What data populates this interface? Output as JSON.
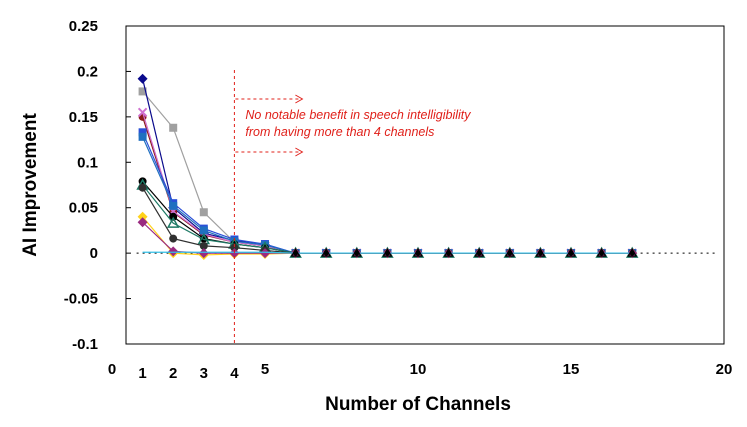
{
  "chart_data": {
    "type": "scatter",
    "xlabel": "Number of Channels",
    "ylabel": "AI Improvement",
    "xlim": [
      0,
      20
    ],
    "ylim": [
      -0.1,
      0.25
    ],
    "x_ticks": [
      "0",
      "5",
      "10",
      "15",
      "20"
    ],
    "x_ticks_values": [
      0,
      5,
      10,
      15,
      20
    ],
    "bold_x_ticks": [
      "1",
      "2",
      "3",
      "4"
    ],
    "bold_x_ticks_values": [
      1,
      2,
      3,
      4
    ],
    "y_ticks": [
      "0.25",
      "0.2",
      "0.15",
      "0.1",
      "0.05",
      "0",
      "-0.05",
      "-0.1"
    ],
    "y_ticks_values": [
      0.25,
      0.2,
      0.15,
      0.1,
      0.05,
      0,
      -0.05,
      -0.1
    ],
    "grid": false,
    "legend": "none",
    "zero_line": "dotted",
    "x": [
      1,
      2,
      3,
      4,
      5,
      6,
      7,
      8,
      9,
      10,
      11,
      12,
      13,
      14,
      15,
      16,
      17
    ],
    "series": [
      {
        "color": "#a0a0a0",
        "marker": "square",
        "values": [
          0.178,
          0.138,
          0.045,
          0.012,
          0.008,
          0,
          0,
          0,
          0,
          0,
          0,
          0,
          0,
          0,
          0,
          0,
          0
        ]
      },
      {
        "color": "#0a0a8c",
        "marker": "diamond",
        "values": [
          0.192,
          0.05,
          0.022,
          0.014,
          0.009,
          0,
          0,
          0,
          0,
          0,
          0,
          0,
          0,
          0,
          0,
          0,
          0
        ]
      },
      {
        "color": "#8b1a1a",
        "marker": "circle",
        "values": [
          0.15,
          0.045,
          0.02,
          0.012,
          0.008,
          0,
          0,
          0,
          0,
          0,
          0,
          0,
          0,
          0,
          0,
          0,
          0
        ]
      },
      {
        "color": "#d070d0",
        "marker": "x",
        "values": [
          0.155,
          0.046,
          0.021,
          0.012,
          0.008,
          0,
          0,
          0,
          0,
          0,
          0,
          0,
          0,
          0,
          0,
          0,
          0
        ]
      },
      {
        "color": "#2a4fd8",
        "marker": "square",
        "values": [
          0.133,
          0.055,
          0.027,
          0.015,
          0.01,
          0,
          0,
          0,
          0,
          0,
          0,
          0,
          0,
          0,
          0,
          0,
          0
        ]
      },
      {
        "color": "#2070c0",
        "marker": "square",
        "values": [
          0.128,
          0.052,
          0.025,
          0.013,
          0.009,
          0,
          0,
          0,
          0,
          0,
          0,
          0,
          0,
          0,
          0,
          0,
          0
        ]
      },
      {
        "color": "#000000",
        "marker": "circle",
        "values": [
          0.079,
          0.04,
          0.016,
          0.01,
          0.006,
          0,
          0,
          0,
          0,
          0,
          0,
          0,
          0,
          0,
          0,
          0,
          0
        ]
      },
      {
        "color": "#1f7a66",
        "marker": "triangle",
        "values": [
          0.075,
          0.033,
          0.015,
          0.01,
          0.006,
          0,
          0,
          0,
          0,
          0,
          0,
          0,
          0,
          0,
          0,
          0,
          0
        ]
      },
      {
        "color": "#303030",
        "marker": "circle",
        "values": [
          0.072,
          0.016,
          0.008,
          0.006,
          0.003,
          0,
          0,
          0,
          0,
          0,
          0,
          0,
          0,
          0,
          0,
          0,
          0
        ]
      },
      {
        "color": "#ffd21a",
        "marker": "diamond",
        "values": [
          0.04,
          0.0,
          -0.002,
          -0.001,
          -0.001,
          0,
          0,
          0,
          0,
          0,
          0,
          0,
          0,
          0,
          0,
          0,
          0
        ]
      },
      {
        "color": "#9a2a80",
        "marker": "diamond",
        "values": [
          0.034,
          0.002,
          0.0,
          0.0,
          0.0,
          0,
          0,
          0,
          0,
          0,
          0,
          0,
          0,
          0,
          0,
          0,
          0
        ]
      },
      {
        "color": "#35c0e8",
        "marker": "none",
        "values": [
          0.001,
          0.001,
          0.001,
          0.001,
          0.001,
          0,
          0,
          0,
          0,
          0,
          0,
          0,
          0,
          0,
          0,
          0,
          0
        ]
      }
    ],
    "reference_line": {
      "x": 4,
      "color": "#e0201a",
      "style": "dashed"
    },
    "annotation": {
      "lines": [
        "No notable benefit in speech intelligibility",
        "from having more than 4 channels"
      ],
      "color": "#e0201a"
    }
  }
}
